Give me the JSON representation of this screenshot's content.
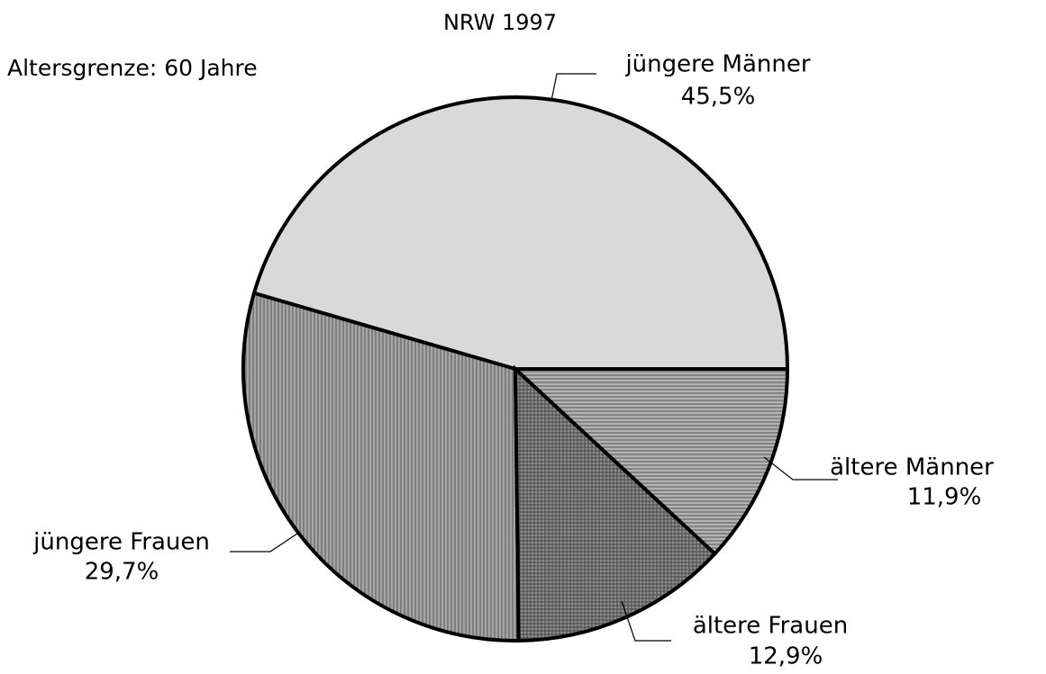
{
  "chart_data": {
    "type": "pie",
    "subtitle": "NRW 1997",
    "annotation": "Altersgrenze: 60 Jahre",
    "categories": [
      "jüngere Männer",
      "jüngere Frauen",
      "ältere Frauen",
      "ältere Männer"
    ],
    "values": [
      45.5,
      29.7,
      12.9,
      11.9
    ],
    "value_labels": [
      "45,5%",
      "29,7%",
      "12,9%",
      "11,9%"
    ],
    "colors": [
      "#d9d9d9",
      "#a6a6a6",
      "#8f8f8f",
      "#b3b3b3"
    ]
  }
}
